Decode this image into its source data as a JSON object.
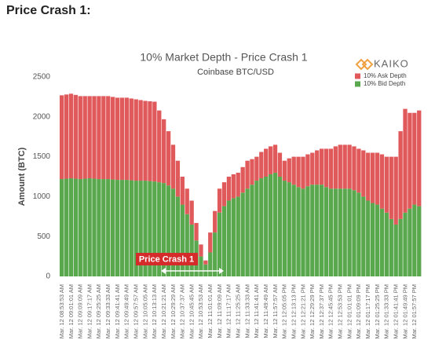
{
  "heading": "Price Crash 1:",
  "logo": "KAIKO",
  "chart_data": {
    "type": "stacked_bar",
    "title": "10% Market Depth - Price Crash 1",
    "subtitle": "Coinbase BTC/USD",
    "y_label": "Amount (BTC)",
    "annotation": "Price Crash 1",
    "legend": "top-right",
    "ylim": [
      0,
      2500
    ],
    "yticks": [
      0,
      500,
      1000,
      1500,
      2000,
      2500
    ],
    "grid": false,
    "categories": [
      "Mar. 12 08:53:53 AM",
      null,
      "Mar. 12 09:01:01 AM",
      null,
      "Mar. 12 09:09:09 AM",
      null,
      "Mar. 12 09:17:17 AM",
      null,
      "Mar. 12 09:25:25 AM",
      null,
      "Mar. 12 09:33:33 AM",
      null,
      "Mar. 12 09:41:41 AM",
      null,
      "Mar. 12 09:49:49 AM",
      null,
      "Mar. 12 09:57:57 AM",
      null,
      "Mar. 12 10:05:05 AM",
      null,
      "Mar. 12 10:13:13 AM",
      null,
      "Mar. 12 10:21:21 AM",
      null,
      "Mar. 12 10:29:29 AM",
      null,
      "Mar. 12 10:37:37 AM",
      null,
      "Mar. 12 10:45:45 AM",
      null,
      "Mar. 12 10:53:53 AM",
      null,
      "Mar. 12 11:01:01 AM",
      null,
      "Mar. 12 11:09:09 AM",
      null,
      "Mar. 12 11:17:17 AM",
      null,
      "Mar. 12 11:25:25 AM",
      null,
      "Mar. 12 11:33:33 AM",
      null,
      "Mar. 12 11:41:41 AM",
      null,
      "Mar. 12 11:49:49 AM",
      null,
      "Mar. 12 11:57:57 AM",
      null,
      "Mar. 12 12:05:05 PM",
      null,
      "Mar. 12 12:13:13 PM",
      null,
      "Mar. 12 12:21:21 PM",
      null,
      "Mar. 12 12:29:29 PM",
      null,
      "Mar. 12 12:37:37 PM",
      null,
      "Mar. 12 12:45:45 PM",
      null,
      "Mar. 12 12:53:53 PM",
      null,
      "Mar. 12 01:01:01 PM",
      null,
      "Mar. 12 01:09:09 PM",
      null,
      "Mar. 12 01:17:17 PM",
      null,
      "Mar. 12 01:25:25 PM",
      null,
      "Mar. 12 01:33:33 PM",
      null,
      "Mar. 12 01:41:41 PM",
      null,
      "Mar. 12 01:49:49 PM",
      null,
      "Mar. 12 01:57:57 PM",
      null
    ],
    "series": [
      {
        "name": "10% Ask Depth",
        "color": "#e05a5c",
        "values": [
          1050,
          1055,
          1060,
          1050,
          1040,
          1035,
          1030,
          1035,
          1040,
          1040,
          1040,
          1035,
          1030,
          1030,
          1030,
          1025,
          1020,
          1010,
          1000,
          1000,
          1000,
          900,
          800,
          680,
          550,
          450,
          350,
          320,
          300,
          220,
          150,
          50,
          250,
          270,
          300,
          300,
          300,
          300,
          300,
          320,
          350,
          320,
          300,
          330,
          350,
          350,
          350,
          300,
          250,
          300,
          350,
          380,
          400,
          400,
          400,
          430,
          450,
          480,
          500,
          530,
          550,
          550,
          550,
          550,
          550,
          580,
          600,
          630,
          650,
          680,
          700,
          780,
          850,
          1100,
          1300,
          1200,
          1150,
          1200
        ]
      },
      {
        "name": "10% Bid Depth",
        "color": "#5aa84e",
        "values": [
          1220,
          1225,
          1230,
          1225,
          1220,
          1225,
          1230,
          1225,
          1220,
          1220,
          1220,
          1215,
          1210,
          1210,
          1210,
          1205,
          1200,
          1200,
          1200,
          1195,
          1190,
          1180,
          1170,
          1140,
          1100,
          1000,
          900,
          780,
          650,
          450,
          250,
          150,
          300,
          550,
          800,
          880,
          950,
          980,
          1000,
          1050,
          1100,
          1150,
          1200,
          1230,
          1250,
          1280,
          1300,
          1250,
          1200,
          1180,
          1150,
          1120,
          1100,
          1130,
          1150,
          1150,
          1150,
          1120,
          1100,
          1100,
          1100,
          1100,
          1100,
          1080,
          1050,
          1000,
          950,
          920,
          900,
          850,
          800,
          720,
          650,
          720,
          800,
          850,
          900,
          880
        ]
      }
    ]
  }
}
